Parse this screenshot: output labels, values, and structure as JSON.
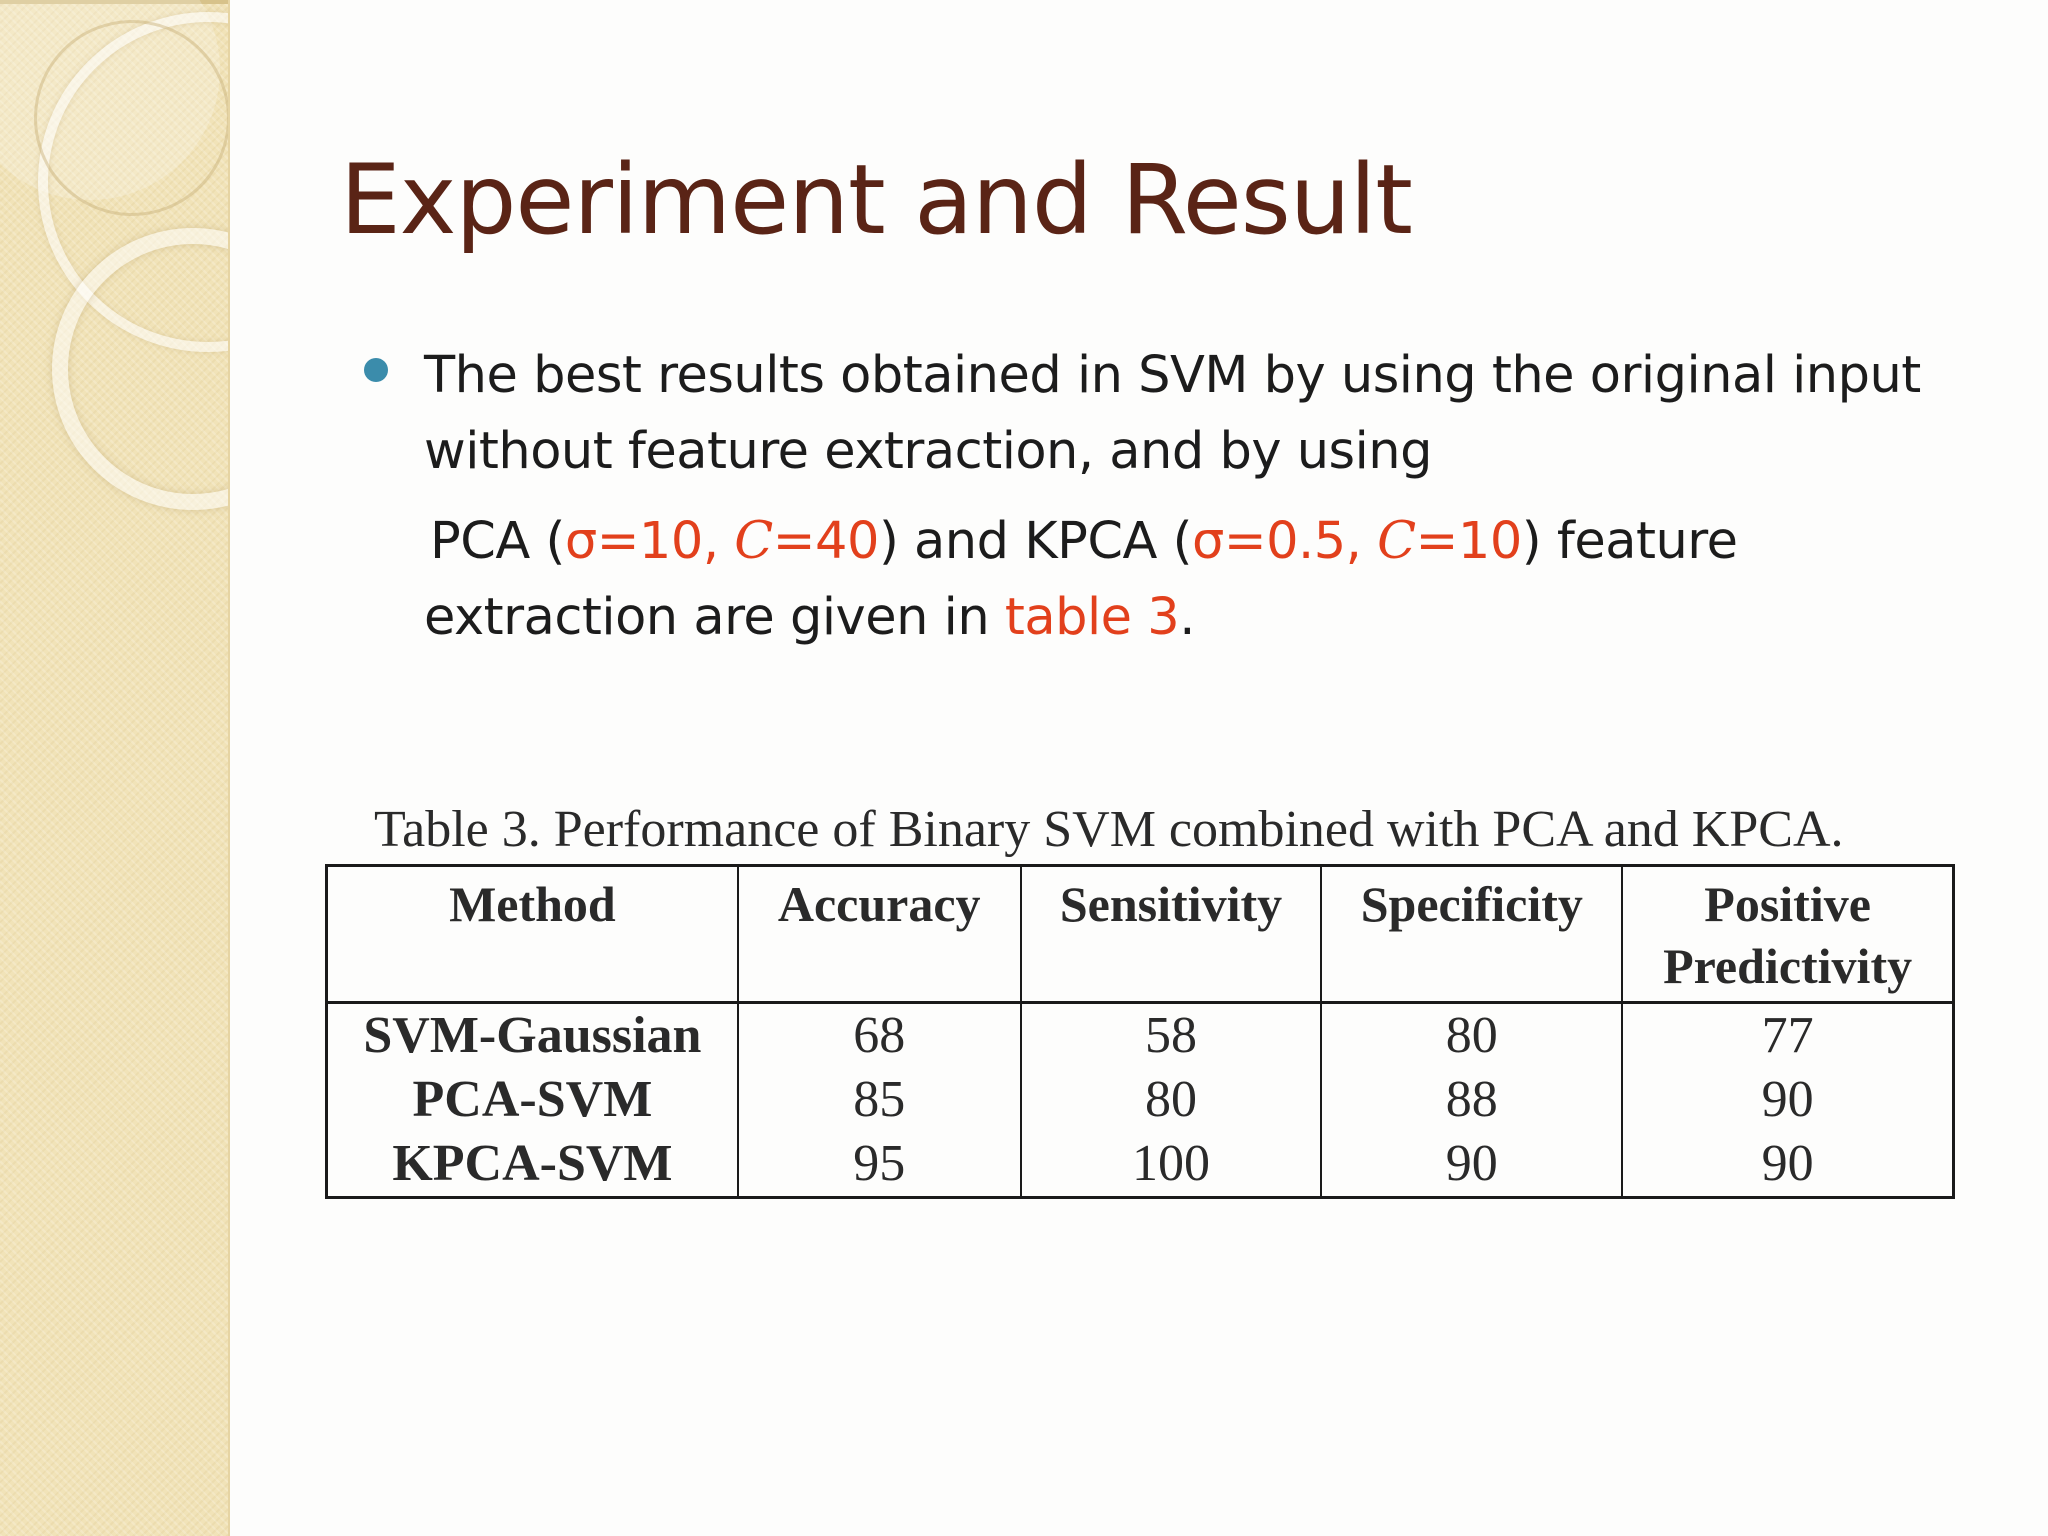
{
  "slide": {
    "title": "Experiment and Result"
  },
  "bullet": {
    "line1": "The best results obtained in SVM by using the original input",
    "line2": "without feature extraction, and by using",
    "pca_label": "PCA (",
    "pca_sigma": "σ=10,",
    "pca_c_symbol": "C",
    "pca_c_value": "=40",
    "mid_text": ") and KPCA (",
    "kpca_sigma": "σ=0.5,",
    "kpca_c_symbol": "C",
    "kpca_c_value": "=10",
    "after_text": ") feature",
    "line4_start": "extraction are given in",
    "table_ref": "table 3",
    "line4_end": "."
  },
  "table": {
    "caption": "Table 3. Performance of Binary SVM combined with PCA and KPCA.",
    "headers": {
      "method": "Method",
      "accuracy": "Accuracy",
      "sensitivity": "Sensitivity",
      "specificity": "Specificity",
      "positive_line1": "Positive",
      "positive_line2": "Predictivity"
    },
    "rows": [
      {
        "method": "SVM-Gaussian",
        "accuracy": "68",
        "sensitivity": "58",
        "specificity": "80",
        "positive_predictivity": "77"
      },
      {
        "method": "PCA-SVM",
        "accuracy": "85",
        "sensitivity": "80",
        "specificity": "88",
        "positive_predictivity": "90"
      },
      {
        "method": "KPCA-SVM",
        "accuracy": "95",
        "sensitivity": "100",
        "specificity": "90",
        "positive_predictivity": "90"
      }
    ]
  },
  "colors": {
    "title": "#5a2416",
    "highlight": "#e2401c",
    "bullet": "#3b8cab",
    "sidebar": "#f1e3b8"
  }
}
